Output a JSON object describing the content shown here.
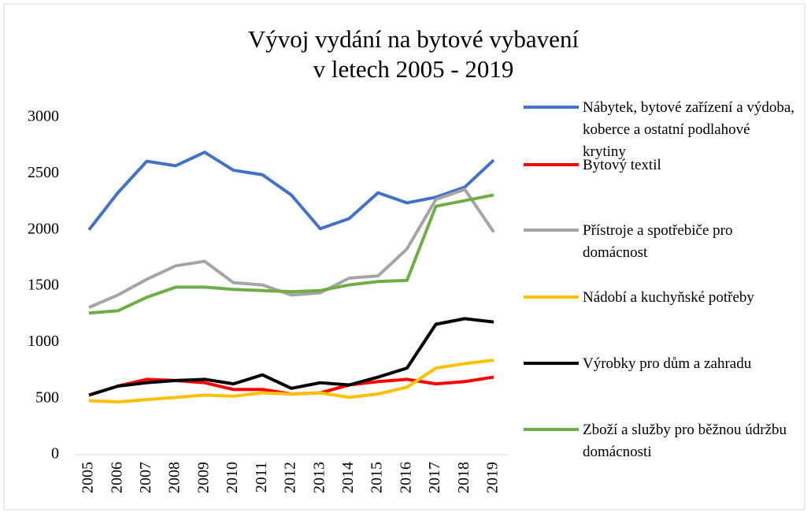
{
  "chart_data": {
    "type": "line",
    "title": [
      "Vývoj vydání na  bytové vybavení",
      "v letech 2005 - 2019"
    ],
    "categories": [
      "2005",
      "2006",
      "2007",
      "2008",
      "2009",
      "2010",
      "2011",
      "2012",
      "2013",
      "2014",
      "2015",
      "2016",
      "2017",
      "2018",
      "2019"
    ],
    "ylim": [
      0,
      3000
    ],
    "yticks": [
      0,
      500,
      1000,
      1500,
      2000,
      2500,
      3000
    ],
    "grid": false,
    "legend": "right",
    "series": [
      {
        "name": "Nábytek, bytové zařízení a výdoba, koberce a ostatní podlahové krytiny",
        "color": "#4472c4",
        "values": [
          2000,
          2330,
          2610,
          2570,
          2690,
          2530,
          2490,
          2310,
          2010,
          2100,
          2330,
          2240,
          2290,
          2380,
          2620
        ]
      },
      {
        "name": "Bytový textil",
        "color": "#ff0000",
        "values": [
          530,
          610,
          670,
          660,
          640,
          580,
          580,
          540,
          550,
          620,
          650,
          670,
          630,
          650,
          690
        ]
      },
      {
        "name": "Přístroje a spotřebiče pro domácnost",
        "color": "#a5a5a5",
        "values": [
          1310,
          1420,
          1560,
          1680,
          1720,
          1530,
          1510,
          1420,
          1440,
          1570,
          1590,
          1830,
          2270,
          2360,
          1980
        ]
      },
      {
        "name": "Nádobí a kuchyňské potřeby",
        "color": "#ffc000",
        "values": [
          480,
          470,
          490,
          510,
          530,
          520,
          550,
          540,
          550,
          510,
          540,
          600,
          770,
          810,
          840
        ]
      },
      {
        "name": "Výrobky pro dům a zahradu",
        "color": "#000000",
        "values": [
          530,
          610,
          640,
          660,
          670,
          630,
          710,
          590,
          640,
          620,
          690,
          770,
          1160,
          1210,
          1180
        ]
      },
      {
        "name": "Zboží a služby pro běžnou údržbu domácnosti",
        "color": "#70ad47",
        "values": [
          1260,
          1280,
          1400,
          1490,
          1490,
          1470,
          1460,
          1450,
          1460,
          1510,
          1540,
          1550,
          2210,
          2260,
          2310
        ]
      }
    ]
  }
}
